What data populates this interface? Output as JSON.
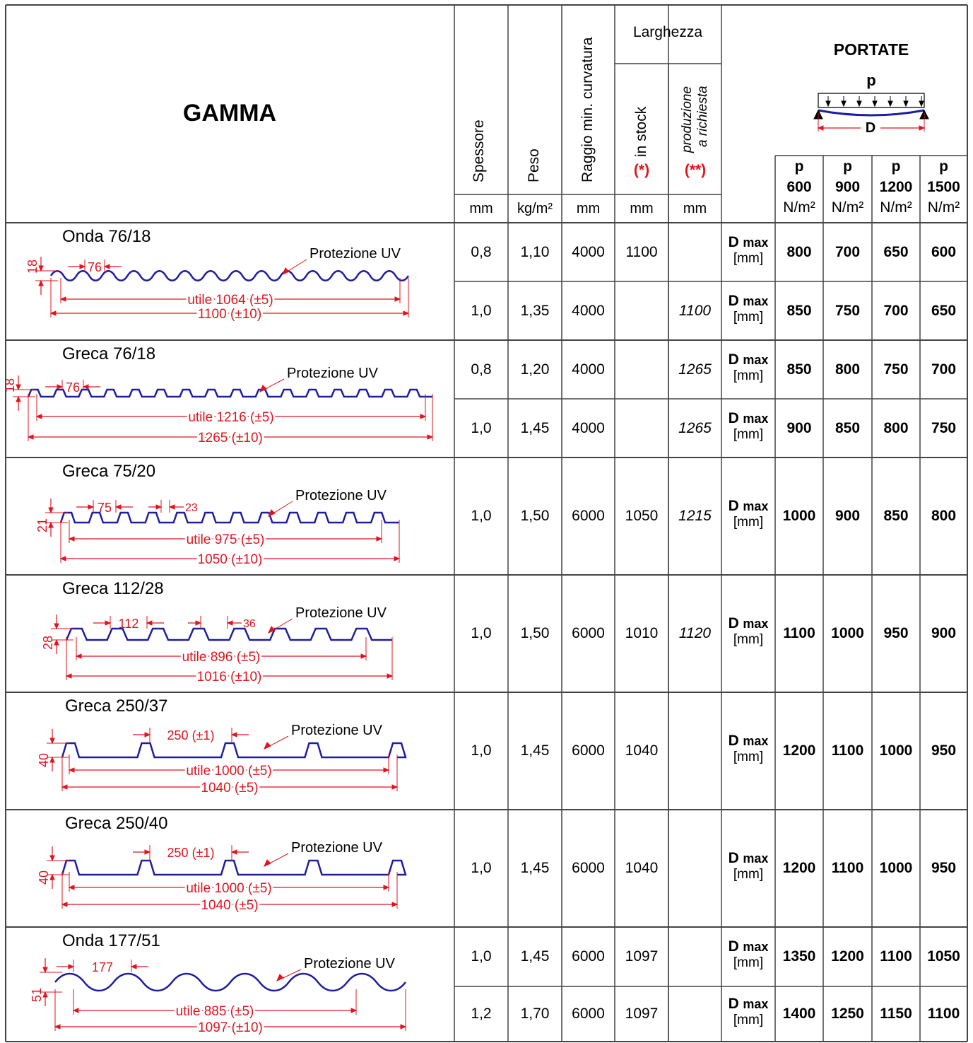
{
  "header": {
    "gamma": "GAMMA",
    "spessore": "Spessore",
    "peso": "Peso",
    "raggio": "Raggio min. curvatura",
    "larghezza": "Larghezza",
    "in_stock": "in stock",
    "in_stock_mark": "(*)",
    "produzione_line1": "produzione",
    "produzione_line2": "a richiesta",
    "produzione_mark": "(**)",
    "portate": "PORTATE",
    "diagram_p": "p",
    "diagram_d": "D",
    "units": [
      "mm",
      "kg/m²",
      "mm",
      "mm",
      "mm"
    ],
    "loads": [
      {
        "p": "p",
        "value": "600",
        "unit": "N/m²"
      },
      {
        "p": "p",
        "value": "900",
        "unit": "N/m²"
      },
      {
        "p": "p",
        "value": "1200",
        "unit": "N/m²"
      },
      {
        "p": "p",
        "value": "1500",
        "unit": "N/m²"
      }
    ],
    "dmax_label": "D",
    "dmax_sub": "max",
    "dmax_unit": "[mm]"
  },
  "products": [
    {
      "name": "Onda 76/18",
      "uv": "Protezione UV",
      "height": "18",
      "pitch": "76",
      "top": "",
      "utile": "utile 1064 (±5)",
      "total": "1100 (±10)",
      "rows": [
        {
          "spessore": "0,8",
          "peso": "1,10",
          "raggio": "4000",
          "stock": "1100",
          "richiesta": "",
          "loads": [
            "800",
            "700",
            "650",
            "600"
          ]
        },
        {
          "spessore": "1,0",
          "peso": "1,35",
          "raggio": "4000",
          "stock": "",
          "richiesta": "1100",
          "loads": [
            "850",
            "750",
            "700",
            "650"
          ]
        }
      ]
    },
    {
      "name": "Greca 76/18",
      "uv": "Protezione UV",
      "height": "18",
      "pitch": "76",
      "top": "",
      "utile": "utile 1216 (±5)",
      "total": "1265 (±10)",
      "rows": [
        {
          "spessore": "0,8",
          "peso": "1,20",
          "raggio": "4000",
          "stock": "",
          "richiesta": "1265",
          "loads": [
            "850",
            "800",
            "750",
            "700"
          ]
        },
        {
          "spessore": "1,0",
          "peso": "1,45",
          "raggio": "4000",
          "stock": "",
          "richiesta": "1265",
          "loads": [
            "900",
            "850",
            "800",
            "750"
          ]
        }
      ]
    },
    {
      "name": "Greca 75/20",
      "uv": "Protezione UV",
      "height": "21",
      "pitch": "75",
      "top": "23",
      "utile": "utile 975 (±5)",
      "total": "1050 (±10)",
      "rows": [
        {
          "spessore": "1,0",
          "peso": "1,50",
          "raggio": "6000",
          "stock": "1050",
          "richiesta": "1215",
          "loads": [
            "1000",
            "900",
            "850",
            "800"
          ]
        }
      ]
    },
    {
      "name": "Greca 112/28",
      "uv": "Protezione UV",
      "height": "28",
      "pitch": "112",
      "top": "36",
      "utile": "utile 896 (±5)",
      "total": "1016 (±10)",
      "rows": [
        {
          "spessore": "1,0",
          "peso": "1,50",
          "raggio": "6000",
          "stock": "1010",
          "richiesta": "1120",
          "loads": [
            "1100",
            "1000",
            "950",
            "900"
          ]
        }
      ]
    },
    {
      "name": "Greca 250/37",
      "uv": "Protezione UV",
      "height": "40",
      "pitch": "250 (±1)",
      "top": "",
      "utile": "utile 1000 (±5)",
      "total": "1040 (±5)",
      "rows": [
        {
          "spessore": "1,0",
          "peso": "1,45",
          "raggio": "6000",
          "stock": "1040",
          "richiesta": "",
          "loads": [
            "1200",
            "1100",
            "1000",
            "950"
          ]
        }
      ]
    },
    {
      "name": "Greca 250/40",
      "uv": "Protezione UV",
      "height": "40",
      "pitch": "250 (±1)",
      "top": "",
      "utile": "utile 1000 (±5)",
      "total": "1040 (±5)",
      "rows": [
        {
          "spessore": "1,0",
          "peso": "1,45",
          "raggio": "6000",
          "stock": "1040",
          "richiesta": "",
          "loads": [
            "1200",
            "1100",
            "1000",
            "950"
          ]
        }
      ]
    },
    {
      "name": "Onda 177/51",
      "uv": "Protezione UV",
      "height": "51",
      "pitch": "177",
      "top": "",
      "utile": "utile 885 (±5)",
      "total": "1097 (±10)",
      "rows": [
        {
          "spessore": "1,0",
          "peso": "1,45",
          "raggio": "6000",
          "stock": "1097",
          "richiesta": "",
          "loads": [
            "1350",
            "1200",
            "1100",
            "1050"
          ]
        },
        {
          "spessore": "1,2",
          "peso": "1,70",
          "raggio": "6000",
          "stock": "1097",
          "richiesta": "",
          "loads": [
            "1400",
            "1250",
            "1150",
            "1100"
          ]
        }
      ]
    }
  ],
  "colors": {
    "profile": "#1e1ea0",
    "dimension": "#e0141e",
    "grid": "#444444"
  }
}
